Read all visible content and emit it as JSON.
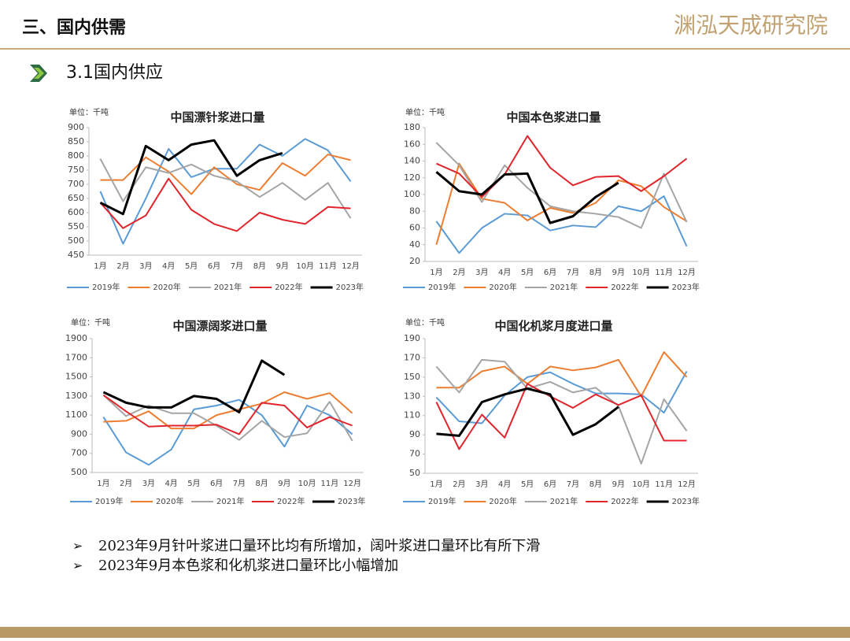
{
  "header": {
    "title": "三、国内供需",
    "logo": "渊泓天成研究院",
    "section": "3.1国内供应"
  },
  "bullets": [
    "2023年9月针叶浆进口量环比均有所增加，阔叶浆进口量环比有所下滑",
    "2023年9月本色浆和化机浆进口量环比小幅增加"
  ],
  "chart_data": [
    {
      "type": "line",
      "title": "中国漂针浆进口量",
      "unit": "单位：千吨",
      "categories": [
        "1月",
        "2月",
        "3月",
        "4月",
        "5月",
        "6月",
        "7月",
        "8月",
        "9月",
        "10月",
        "11月",
        "12月"
      ],
      "ylim": [
        450,
        900
      ],
      "yticks": [
        450,
        500,
        550,
        600,
        650,
        700,
        750,
        800,
        850,
        900
      ],
      "series": [
        {
          "name": "2019年",
          "color": "#5b9bd5",
          "values": [
            675,
            490,
            650,
            825,
            725,
            755,
            755,
            840,
            800,
            860,
            820,
            710
          ]
        },
        {
          "name": "2020年",
          "color": "#ed7d31",
          "values": [
            715,
            715,
            795,
            745,
            665,
            760,
            700,
            680,
            775,
            730,
            805,
            785
          ]
        },
        {
          "name": "2021年",
          "color": "#a5a5a5",
          "values": [
            790,
            640,
            760,
            740,
            770,
            730,
            710,
            655,
            705,
            645,
            705,
            580
          ]
        },
        {
          "name": "2022年",
          "color": "#e0262c",
          "values": [
            635,
            545,
            590,
            720,
            610,
            560,
            535,
            600,
            575,
            560,
            620,
            615
          ]
        },
        {
          "name": "2023年",
          "color": "#000000",
          "values": [
            635,
            595,
            835,
            785,
            840,
            855,
            730,
            785,
            810,
            null,
            null,
            null
          ]
        }
      ]
    },
    {
      "type": "line",
      "title": "中国本色浆进口量",
      "unit": "单位：千吨",
      "categories": [
        "1月",
        "2月",
        "3月",
        "4月",
        "5月",
        "6月",
        "7月",
        "8月",
        "9月",
        "10月",
        "11月",
        "12月"
      ],
      "ylim": [
        20,
        180
      ],
      "yticks": [
        20,
        40,
        60,
        80,
        100,
        120,
        140,
        160,
        180
      ],
      "series": [
        {
          "name": "2019年",
          "color": "#5b9bd5",
          "values": [
            68,
            30,
            60,
            77,
            75,
            57,
            63,
            61,
            86,
            80,
            98,
            38
          ]
        },
        {
          "name": "2020年",
          "color": "#ed7d31",
          "values": [
            40,
            137,
            95,
            90,
            69,
            84,
            78,
            90,
            117,
            110,
            85,
            68
          ]
        },
        {
          "name": "2021年",
          "color": "#a5a5a5",
          "values": [
            162,
            135,
            91,
            135,
            108,
            86,
            80,
            77,
            73,
            60,
            125,
            67
          ]
        },
        {
          "name": "2022年",
          "color": "#e0262c",
          "values": [
            137,
            125,
            97,
            124,
            170,
            132,
            111,
            121,
            122,
            104,
            122,
            143
          ]
        },
        {
          "name": "2023年",
          "color": "#000000",
          "values": [
            127,
            104,
            100,
            124,
            125,
            66,
            74,
            97,
            114,
            null,
            null,
            null
          ]
        }
      ]
    },
    {
      "type": "line",
      "title": "中国漂阔浆进口量",
      "unit": "单位：千吨",
      "categories": [
        "1月",
        "2月",
        "3月",
        "4月",
        "5月",
        "6月",
        "7月",
        "8月",
        "9月",
        "10月",
        "11月",
        "12月"
      ],
      "ylim": [
        500,
        1900
      ],
      "yticks": [
        500,
        700,
        900,
        1100,
        1300,
        1500,
        1700,
        1900
      ],
      "series": [
        {
          "name": "2019年",
          "color": "#5b9bd5",
          "values": [
            1080,
            710,
            580,
            740,
            1160,
            1200,
            1260,
            1100,
            770,
            1200,
            1100,
            900
          ]
        },
        {
          "name": "2020年",
          "color": "#ed7d31",
          "values": [
            1030,
            1040,
            1140,
            960,
            960,
            1100,
            1160,
            1220,
            1340,
            1270,
            1330,
            1120
          ]
        },
        {
          "name": "2021年",
          "color": "#a5a5a5",
          "values": [
            1310,
            1090,
            1200,
            1120,
            1120,
            990,
            840,
            1040,
            870,
            910,
            1240,
            830
          ]
        },
        {
          "name": "2022年",
          "color": "#e0262c",
          "values": [
            1310,
            1140,
            980,
            990,
            990,
            1000,
            900,
            1230,
            1200,
            970,
            1080,
            990
          ]
        },
        {
          "name": "2023年",
          "color": "#000000",
          "values": [
            1340,
            1230,
            1180,
            1180,
            1300,
            1270,
            1130,
            1670,
            1520,
            null,
            null,
            null
          ]
        }
      ]
    },
    {
      "type": "line",
      "title": "中国化机浆月度进口量",
      "unit": "单位：千吨",
      "categories": [
        "1月",
        "2月",
        "3月",
        "4月",
        "5月",
        "6月",
        "7月",
        "8月",
        "9月",
        "10月",
        "11月",
        "12月"
      ],
      "ylim": [
        50,
        190
      ],
      "yticks": [
        50,
        70,
        90,
        110,
        130,
        150,
        170,
        190
      ],
      "series": [
        {
          "name": "2019年",
          "color": "#5b9bd5",
          "values": [
            129,
            104,
            102,
            131,
            150,
            155,
            143,
            133,
            133,
            132,
            113,
            156
          ]
        },
        {
          "name": "2020年",
          "color": "#ed7d31",
          "values": [
            139,
            139,
            156,
            161,
            143,
            161,
            157,
            160,
            168,
            130,
            176,
            150
          ]
        },
        {
          "name": "2021年",
          "color": "#a5a5a5",
          "values": [
            161,
            134,
            168,
            166,
            138,
            145,
            134,
            139,
            120,
            60,
            127,
            94
          ]
        },
        {
          "name": "2022年",
          "color": "#e0262c",
          "values": [
            124,
            75,
            111,
            87,
            143,
            130,
            118,
            132,
            121,
            131,
            84,
            84
          ]
        },
        {
          "name": "2023年",
          "color": "#000000",
          "values": [
            91,
            89,
            124,
            132,
            138,
            132,
            90,
            101,
            119,
            null,
            null,
            null
          ]
        }
      ]
    }
  ]
}
